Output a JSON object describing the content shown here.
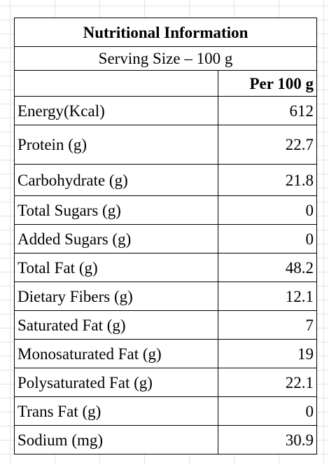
{
  "table": {
    "title": "Nutritional Information",
    "serving": "Serving Size – 100 g",
    "column_header": "Per 100 g",
    "rows": [
      {
        "label": "Energy(Kcal)",
        "value": "612"
      },
      {
        "label": "Protein (g)",
        "value": "22.7"
      },
      {
        "label": "Carbohydrate (g)",
        "value": "21.8"
      },
      {
        "label": "Total Sugars (g)",
        "value": "0"
      },
      {
        "label": "Added Sugars (g)",
        "value": "0"
      },
      {
        "label": "Total Fat (g)",
        "value": "48.2"
      },
      {
        "label": "Dietary Fibers (g)",
        "value": "12.1"
      },
      {
        "label": "Saturated Fat (g)",
        "value": "7"
      },
      {
        "label": "Monosaturated Fat (g)",
        "value": "19"
      },
      {
        "label": "Polysaturated Fat (g)",
        "value": "22.1"
      },
      {
        "label": "Trans Fat (g)",
        "value": "0"
      },
      {
        "label": "Sodium (mg)",
        "value": "30.9"
      }
    ]
  }
}
